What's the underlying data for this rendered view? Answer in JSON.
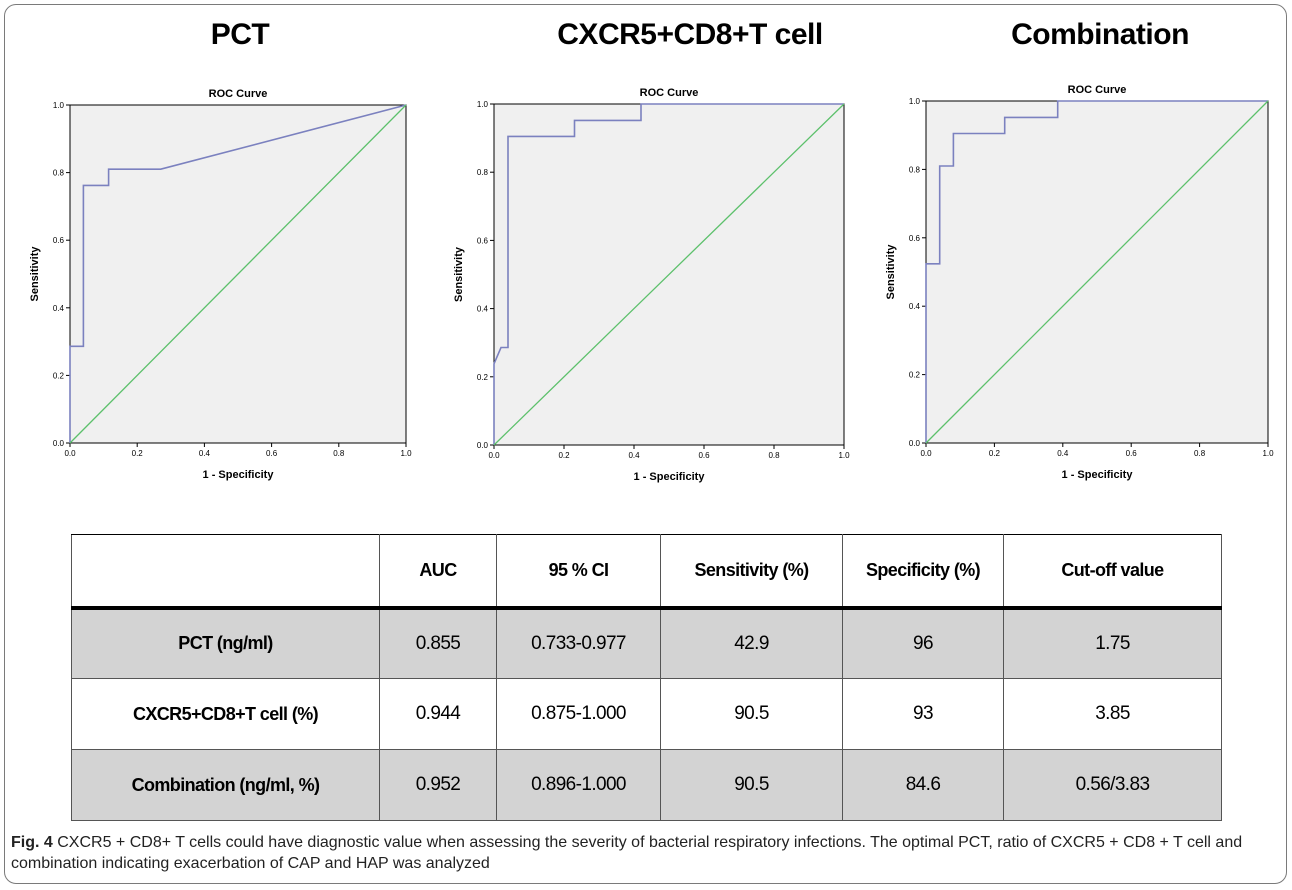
{
  "panels": [
    {
      "title": "PCT"
    },
    {
      "title": "CXCR5+CD8+T cell"
    },
    {
      "title": "Combination"
    }
  ],
  "chart_data": [
    {
      "type": "line",
      "title": "ROC Curve",
      "xlabel": "1 - Specificity",
      "ylabel": "Sensitivity",
      "xlim": [
        0,
        1
      ],
      "ylim": [
        0,
        1
      ],
      "ticks": [
        "0.0",
        "0.2",
        "0.4",
        "0.6",
        "0.8",
        "1.0"
      ],
      "grid": false,
      "series": [
        {
          "role": "roc",
          "color": "#7b81bf",
          "x": [
            0,
            0,
            0.04,
            0.04,
            0.115,
            0.115,
            0.27,
            1.0
          ],
          "y": [
            0,
            0.286,
            0.286,
            0.762,
            0.762,
            0.81,
            0.81,
            1.0
          ]
        },
        {
          "role": "reference",
          "color": "#5cc06b",
          "x": [
            0,
            1
          ],
          "y": [
            0,
            1
          ]
        }
      ]
    },
    {
      "type": "line",
      "title": "ROC Curve",
      "xlabel": "1 - Specificity",
      "ylabel": "Sensitivity",
      "xlim": [
        0,
        1
      ],
      "ylim": [
        0,
        1
      ],
      "ticks": [
        "0.0",
        "0.2",
        "0.4",
        "0.6",
        "0.8",
        "1.0"
      ],
      "grid": false,
      "series": [
        {
          "role": "roc",
          "color": "#7b81bf",
          "x": [
            0,
            0,
            0.02,
            0.02,
            0.04,
            0.04,
            0.23,
            0.23,
            0.42,
            0.42,
            1.0
          ],
          "y": [
            0,
            0.238,
            0.286,
            0.286,
            0.286,
            0.905,
            0.905,
            0.952,
            0.952,
            1.0,
            1.0
          ]
        },
        {
          "role": "reference",
          "color": "#5cc06b",
          "x": [
            0,
            1
          ],
          "y": [
            0,
            1
          ]
        }
      ]
    },
    {
      "type": "line",
      "title": "ROC Curve",
      "xlabel": "1 - Specificity",
      "ylabel": "Sensitivity",
      "xlim": [
        0,
        1
      ],
      "ylim": [
        0,
        1
      ],
      "ticks": [
        "0.0",
        "0.2",
        "0.4",
        "0.6",
        "0.8",
        "1.0"
      ],
      "grid": false,
      "series": [
        {
          "role": "roc",
          "color": "#7b81bf",
          "x": [
            0,
            0,
            0.04,
            0.04,
            0.08,
            0.08,
            0.23,
            0.23,
            0.385,
            0.385,
            1.0
          ],
          "y": [
            0,
            0.524,
            0.524,
            0.81,
            0.81,
            0.905,
            0.905,
            0.952,
            0.952,
            1.0,
            1.0
          ]
        },
        {
          "role": "reference",
          "color": "#5cc06b",
          "x": [
            0,
            1
          ],
          "y": [
            0,
            1
          ]
        }
      ]
    }
  ],
  "table": {
    "headers": [
      "",
      "AUC",
      "95 % CI",
      "Sensitivity (%)",
      "Specificity (%)",
      "Cut-off value"
    ],
    "rows": [
      [
        "PCT (ng/ml)",
        "0.855",
        "0.733-0.977",
        "42.9",
        "96",
        "1.75"
      ],
      [
        "CXCR5+CD8+T cell (%)",
        "0.944",
        "0.875-1.000",
        "90.5",
        "93",
        "3.85"
      ],
      [
        "Combination (ng/ml,  %)",
        "0.952",
        "0.896-1.000",
        "90.5",
        "84.6",
        "0.56/3.83"
      ]
    ]
  },
  "caption": {
    "label": "Fig. 4",
    "text": "CXCR5 + CD8+ T cells could have diagnostic value when assessing the severity of bacterial respiratory infections. The optimal PCT, ratio of CXCR5 + CD8 + T cell and combination indicating exacerbation of CAP and HAP was analyzed"
  }
}
